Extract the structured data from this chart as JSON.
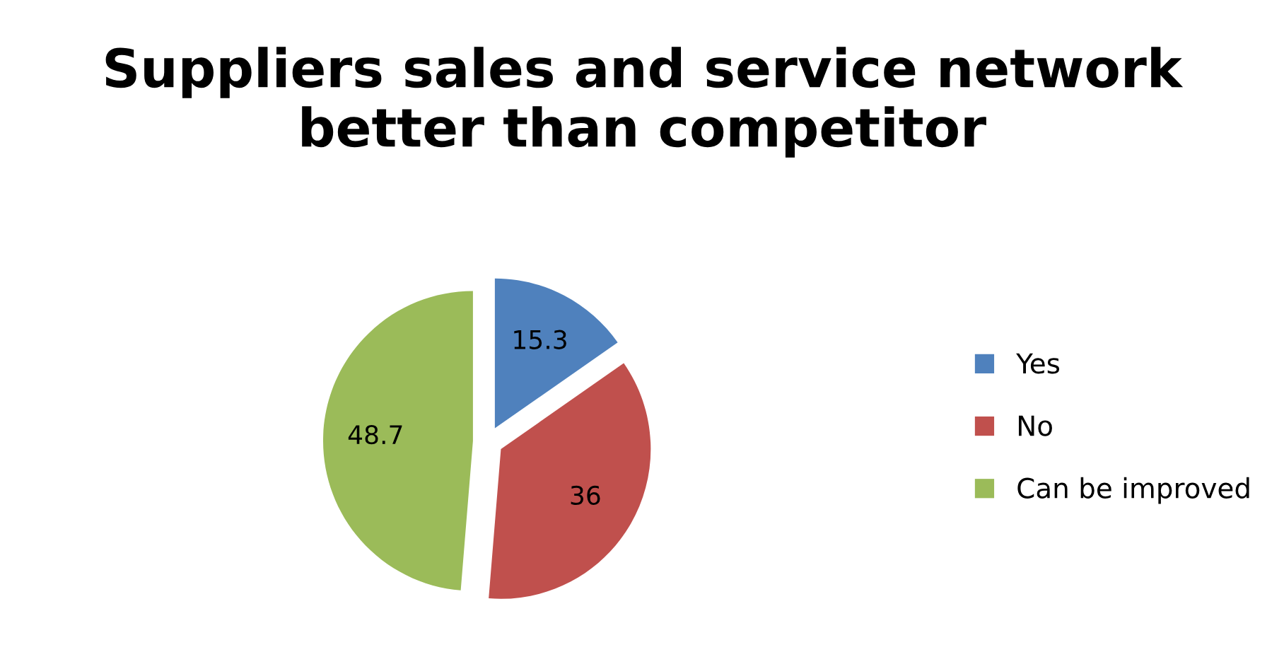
{
  "chart_data": {
    "type": "pie",
    "title": "Suppliers sales and service network better than competitor",
    "categories": [
      "Yes",
      "No",
      "Can be improved"
    ],
    "values": [
      15.3,
      36,
      48.7
    ],
    "colors": [
      "#4f81bd",
      "#c0504d",
      "#9bbb59"
    ],
    "data_labels": true,
    "legend": "right"
  }
}
